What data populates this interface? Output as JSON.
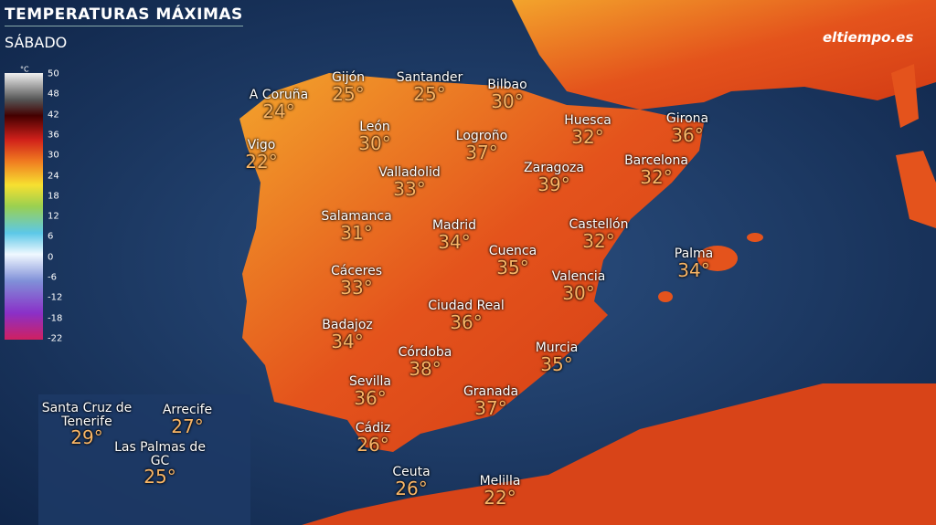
{
  "header": {
    "title": "TEMPERATURAS MÁXIMAS",
    "subtitle": "SÁBADO",
    "logo": "eltiempo.es"
  },
  "legend": {
    "unit": "°C",
    "labels": [
      50,
      48,
      42,
      36,
      30,
      24,
      18,
      12,
      6,
      0,
      -6,
      -12,
      -18,
      -22
    ]
  },
  "cities": [
    {
      "name": "A Coruña",
      "temp": "24°"
    },
    {
      "name": "Gijón",
      "temp": "25°"
    },
    {
      "name": "Santander",
      "temp": "25°"
    },
    {
      "name": "Bilbao",
      "temp": "30°"
    },
    {
      "name": "Vigo",
      "temp": "22°"
    },
    {
      "name": "León",
      "temp": "30°"
    },
    {
      "name": "Logroño",
      "temp": "37°"
    },
    {
      "name": "Huesca",
      "temp": "32°"
    },
    {
      "name": "Girona",
      "temp": "36°"
    },
    {
      "name": "Valladolid",
      "temp": "33°"
    },
    {
      "name": "Zaragoza",
      "temp": "39°"
    },
    {
      "name": "Barcelona",
      "temp": "32°"
    },
    {
      "name": "Salamanca",
      "temp": "31°"
    },
    {
      "name": "Madrid",
      "temp": "34°"
    },
    {
      "name": "Cuenca",
      "temp": "35°"
    },
    {
      "name": "Castellón",
      "temp": "32°"
    },
    {
      "name": "Palma",
      "temp": "34°"
    },
    {
      "name": "Cáceres",
      "temp": "33°"
    },
    {
      "name": "Valencia",
      "temp": "30°"
    },
    {
      "name": "Ciudad Real",
      "temp": "36°"
    },
    {
      "name": "Badajoz",
      "temp": "34°"
    },
    {
      "name": "Córdoba",
      "temp": "38°"
    },
    {
      "name": "Murcia",
      "temp": "35°"
    },
    {
      "name": "Sevilla",
      "temp": "36°"
    },
    {
      "name": "Granada",
      "temp": "37°"
    },
    {
      "name": "Cádiz",
      "temp": "26°"
    },
    {
      "name": "Ceuta",
      "temp": "26°"
    },
    {
      "name": "Melilla",
      "temp": "22°"
    }
  ],
  "canarias": [
    {
      "name": "Santa Cruz de Tenerife",
      "temp": "29°"
    },
    {
      "name": "Arrecife",
      "temp": "27°"
    },
    {
      "name": "Las Palmas de GC",
      "temp": "25°"
    }
  ]
}
